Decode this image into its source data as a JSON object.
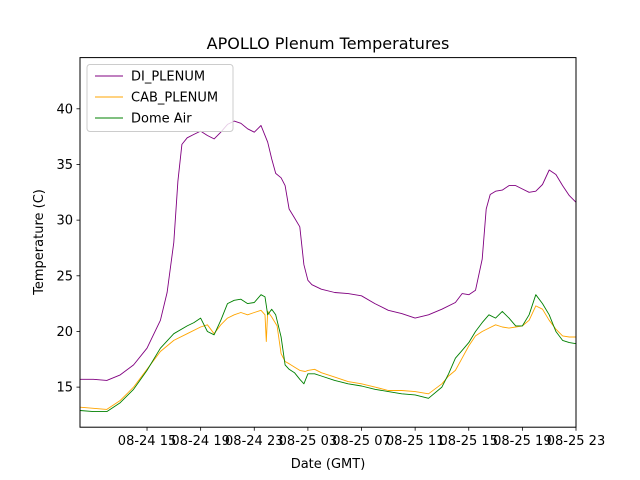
{
  "chart_data": {
    "type": "line",
    "title": "APOLLO Plenum Temperatures",
    "xlabel": "Date (GMT)",
    "ylabel": "Temperature (C)",
    "xlim": [
      0,
      37
    ],
    "ylim": [
      11.4,
      44.6
    ],
    "grid": false,
    "legend_position": "top-left",
    "x_ticks": [
      {
        "x": 5,
        "label": "08-24 15"
      },
      {
        "x": 9,
        "label": "08-24 19"
      },
      {
        "x": 13,
        "label": "08-24 23"
      },
      {
        "x": 17,
        "label": "08-25 03"
      },
      {
        "x": 21,
        "label": "08-25 07"
      },
      {
        "x": 25,
        "label": "08-25 11"
      },
      {
        "x": 29,
        "label": "08-25 15"
      },
      {
        "x": 33,
        "label": "08-25 19"
      },
      {
        "x": 37,
        "label": "08-25 23"
      }
    ],
    "y_ticks": [
      15,
      20,
      25,
      30,
      35,
      40
    ],
    "series": [
      {
        "name": "DI_PLENUM",
        "color": "#800080",
        "x": [
          0,
          1,
          2,
          3,
          4,
          5,
          6,
          6.5,
          7,
          7.3,
          7.6,
          8,
          8.5,
          9,
          9.5,
          10,
          10.5,
          11,
          11.5,
          12,
          12.5,
          13,
          13.5,
          14,
          14.3,
          14.6,
          15,
          15.3,
          15.6,
          16,
          16.4,
          16.7,
          17,
          17.3,
          18,
          19,
          20,
          21,
          22,
          23,
          24,
          25,
          26,
          27,
          28,
          28.5,
          29,
          29.5,
          30,
          30.3,
          30.6,
          31,
          31.5,
          32,
          32.5,
          33,
          33.5,
          34,
          34.5,
          35,
          35.5,
          36,
          36.5,
          37
        ],
        "values": [
          15.7,
          15.7,
          15.6,
          16.1,
          17.0,
          18.5,
          21.0,
          23.5,
          28.0,
          33.5,
          36.8,
          37.4,
          37.7,
          38.0,
          37.6,
          37.3,
          37.9,
          38.6,
          38.9,
          38.7,
          38.2,
          37.9,
          38.5,
          37.0,
          35.5,
          34.2,
          33.8,
          33.1,
          31.0,
          30.2,
          29.4,
          26.0,
          24.6,
          24.2,
          23.8,
          23.5,
          23.4,
          23.2,
          22.5,
          21.9,
          21.6,
          21.2,
          21.5,
          22.0,
          22.6,
          23.4,
          23.3,
          23.7,
          26.5,
          31.0,
          32.3,
          32.6,
          32.7,
          33.1,
          33.1,
          32.8,
          32.5,
          32.6,
          33.2,
          34.5,
          34.1,
          33.1,
          32.2,
          31.6
        ]
      },
      {
        "name": "CAB_PLENUM",
        "color": "#ffa500",
        "x": [
          0,
          1,
          2,
          3,
          4,
          5,
          6,
          7,
          8,
          9,
          9.5,
          10,
          10.5,
          11,
          11.5,
          12,
          12.5,
          13,
          13.5,
          13.8,
          13.9,
          14,
          14.3,
          14.7,
          15,
          15.3,
          15.6,
          16,
          16.4,
          16.8,
          17,
          17.5,
          18,
          19,
          20,
          21,
          22,
          23,
          24,
          25,
          26,
          27,
          27.5,
          28,
          28.5,
          29,
          29.5,
          30,
          30.5,
          31,
          31.5,
          32,
          32.5,
          33,
          33.5,
          34,
          34.5,
          35,
          35.5,
          36,
          36.5,
          37
        ],
        "values": [
          13.2,
          13.1,
          13.0,
          13.8,
          15.0,
          16.6,
          18.2,
          19.2,
          19.8,
          20.4,
          20.6,
          19.8,
          20.6,
          21.2,
          21.5,
          21.7,
          21.5,
          21.7,
          21.9,
          21.5,
          19.1,
          21.8,
          21.3,
          20.5,
          18.0,
          17.3,
          17.1,
          16.8,
          16.5,
          16.4,
          16.5,
          16.6,
          16.3,
          15.9,
          15.5,
          15.3,
          15.0,
          14.7,
          14.7,
          14.6,
          14.4,
          15.3,
          16.0,
          16.5,
          17.6,
          18.7,
          19.6,
          20.0,
          20.3,
          20.6,
          20.4,
          20.3,
          20.4,
          20.5,
          21.0,
          22.3,
          22.0,
          21.0,
          20.2,
          19.6,
          19.5,
          19.5
        ]
      },
      {
        "name": "Dome Air",
        "color": "#008000",
        "x": [
          0,
          1,
          2,
          3,
          4,
          5,
          6,
          7,
          8,
          8.5,
          9,
          9.5,
          10,
          10.5,
          11,
          11.5,
          12,
          12.5,
          13,
          13.5,
          13.8,
          14,
          14.3,
          14.6,
          15,
          15.3,
          15.6,
          16,
          16.4,
          16.7,
          17,
          17.5,
          18,
          19,
          20,
          21,
          22,
          23,
          24,
          25,
          26,
          27,
          27.5,
          28,
          28.5,
          29,
          29.5,
          30,
          30.5,
          31,
          31.5,
          32,
          32.5,
          33,
          33.5,
          34,
          34.5,
          35,
          35.5,
          36,
          36.5,
          37
        ],
        "values": [
          12.9,
          12.8,
          12.8,
          13.6,
          14.8,
          16.5,
          18.5,
          19.8,
          20.5,
          20.8,
          21.2,
          20.0,
          19.7,
          21.0,
          22.5,
          22.8,
          22.9,
          22.5,
          22.6,
          23.3,
          23.1,
          21.5,
          22.0,
          21.5,
          19.5,
          17.0,
          16.6,
          16.3,
          15.7,
          15.3,
          16.2,
          16.2,
          16.0,
          15.6,
          15.3,
          15.1,
          14.8,
          14.6,
          14.4,
          14.3,
          14.0,
          15.0,
          16.2,
          17.6,
          18.3,
          19.0,
          20.0,
          20.8,
          21.5,
          21.2,
          21.8,
          21.2,
          20.5,
          20.5,
          21.5,
          23.3,
          22.5,
          21.5,
          20.0,
          19.2,
          19.0,
          18.9
        ]
      }
    ]
  }
}
